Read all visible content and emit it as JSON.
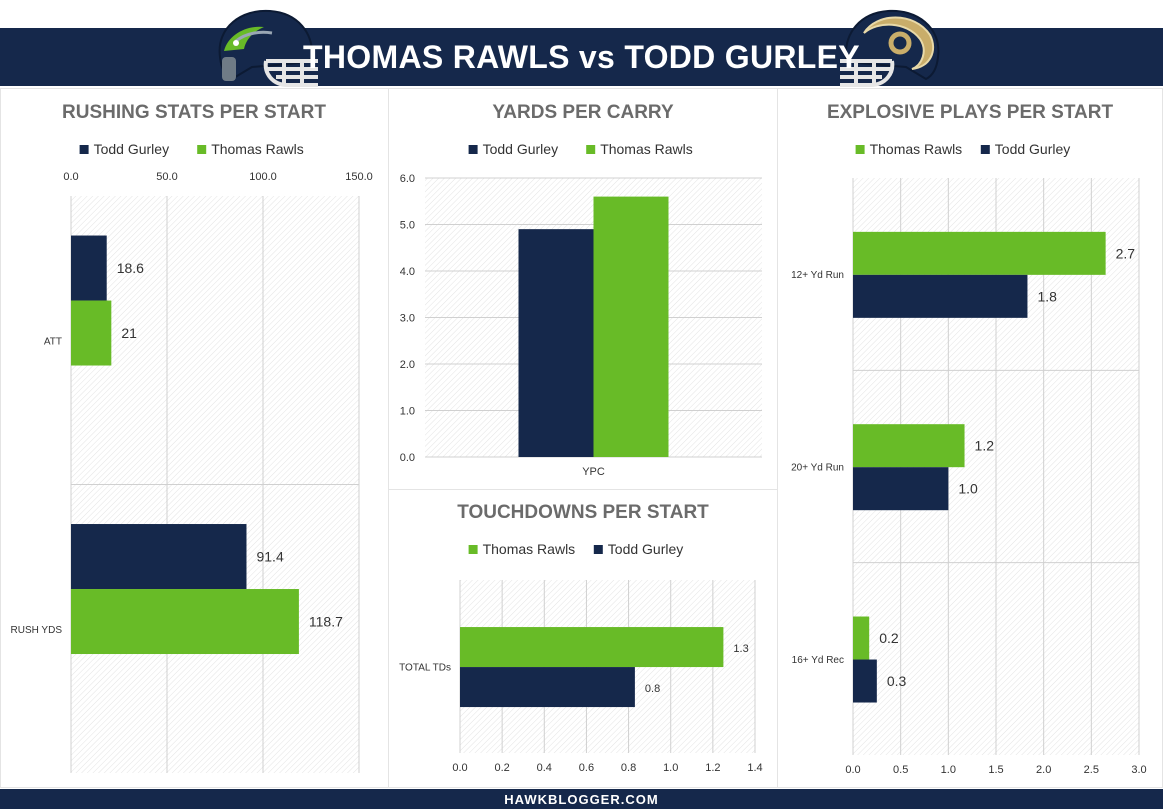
{
  "page": {
    "title": "THOMAS RAWLS vs TODD GURLEY",
    "footer": "HAWKBLOGGER.COM",
    "colors": {
      "navy": "#15284b",
      "green": "#68bb27",
      "grid": "#d0d0d0",
      "text": "#333333",
      "heading": "#6b6b6b"
    },
    "icons": [
      "seahawks-helmet-icon",
      "rams-helmet-icon"
    ]
  },
  "chart_data": [
    {
      "id": "rushing",
      "type": "bar",
      "orientation": "horizontal",
      "title": "RUSHING STATS PER START",
      "categories": [
        "ATT",
        "RUSH YDS"
      ],
      "series": [
        {
          "name": "Todd Gurley",
          "color": "#15284b",
          "values": [
            18.6,
            91.4
          ],
          "labels": [
            "18.6",
            "91.4"
          ]
        },
        {
          "name": "Thomas Rawls",
          "color": "#68bb27",
          "values": [
            21,
            118.7
          ],
          "labels": [
            "21",
            "118.7"
          ]
        }
      ],
      "xlim": [
        0,
        150
      ],
      "ticks": [
        0,
        50,
        100,
        150
      ],
      "tick_labels": [
        "0.0",
        "50.0",
        "100.0",
        "150.0"
      ],
      "axis_position": "top",
      "grid": true,
      "legend": "top"
    },
    {
      "id": "ypc",
      "type": "bar",
      "orientation": "vertical",
      "title": "YARDS PER CARRY",
      "categories": [
        "YPC"
      ],
      "series": [
        {
          "name": "Todd Gurley",
          "color": "#15284b",
          "values": [
            4.9
          ]
        },
        {
          "name": "Thomas Rawls",
          "color": "#68bb27",
          "values": [
            5.6
          ]
        }
      ],
      "ylim": [
        0,
        6
      ],
      "ticks": [
        0,
        1,
        2,
        3,
        4,
        5,
        6
      ],
      "tick_labels": [
        "0.0",
        "1.0",
        "2.0",
        "3.0",
        "4.0",
        "5.0",
        "6.0"
      ],
      "grid": true,
      "legend": "top"
    },
    {
      "id": "tds",
      "type": "bar",
      "orientation": "horizontal",
      "title": "TOUCHDOWNS PER START",
      "categories": [
        "TOTAL TDs"
      ],
      "series": [
        {
          "name": "Thomas Rawls",
          "color": "#68bb27",
          "values": [
            1.25
          ],
          "labels": [
            "1.3"
          ]
        },
        {
          "name": "Todd Gurley",
          "color": "#15284b",
          "values": [
            0.83
          ],
          "labels": [
            "0.8"
          ]
        }
      ],
      "xlim": [
        0,
        1.4
      ],
      "ticks": [
        0,
        0.2,
        0.4,
        0.6,
        0.8,
        1.0,
        1.2,
        1.4
      ],
      "tick_labels": [
        "0.0",
        "0.2",
        "0.4",
        "0.6",
        "0.8",
        "1.0",
        "1.2",
        "1.4"
      ],
      "axis_position": "bottom",
      "grid": true,
      "legend": "top"
    },
    {
      "id": "explosive",
      "type": "bar",
      "orientation": "horizontal",
      "title": "EXPLOSIVE PLAYS PER START",
      "categories": [
        "12+ Yd Run",
        "20+ Yd Run",
        "16+ Yd Rec"
      ],
      "series": [
        {
          "name": "Thomas Rawls",
          "color": "#68bb27",
          "values": [
            2.65,
            1.17,
            0.17
          ],
          "labels": [
            "2.7",
            "1.2",
            "0.2"
          ]
        },
        {
          "name": "Todd Gurley",
          "color": "#15284b",
          "values": [
            1.83,
            1.0,
            0.25
          ],
          "labels": [
            "1.8",
            "1.0",
            "0.3"
          ]
        }
      ],
      "xlim": [
        0,
        3
      ],
      "ticks": [
        0,
        0.5,
        1,
        1.5,
        2,
        2.5,
        3
      ],
      "tick_labels": [
        "0.0",
        "0.5",
        "1.0",
        "1.5",
        "2.0",
        "2.5",
        "3.0"
      ],
      "axis_position": "bottom",
      "grid": true,
      "legend": "top"
    }
  ]
}
